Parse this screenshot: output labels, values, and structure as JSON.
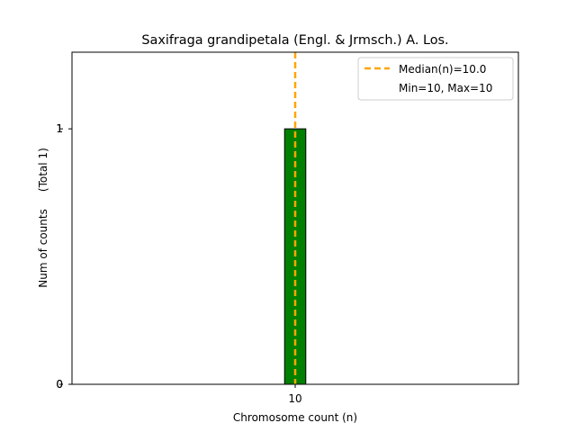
{
  "chart_data": {
    "type": "bar",
    "title": "Saxifraga grandipetala (Engl. & Jrmsch.) A. Los.",
    "xlabel": "Chromosome count (n)",
    "ylabel": "Num of counts     (Total 1)",
    "categories": [
      "10"
    ],
    "values": [
      1
    ],
    "x": [
      10
    ],
    "xlim": [
      8,
      12
    ],
    "ylim": [
      0,
      1.3
    ],
    "yticks": [
      0,
      1
    ],
    "xticks": [
      10
    ],
    "median_line": {
      "x": 10.0,
      "label": "Median(n)=10.0"
    },
    "legend": {
      "placement": "top-right",
      "entries": [
        "Median(n)=10.0",
        "Min=10, Max=10"
      ]
    },
    "grid": false
  },
  "colors": {
    "bar_fill": "#008000",
    "bar_edge": "#000000",
    "median_line": "#FFA500",
    "axes": "#000000",
    "background": "#ffffff"
  }
}
